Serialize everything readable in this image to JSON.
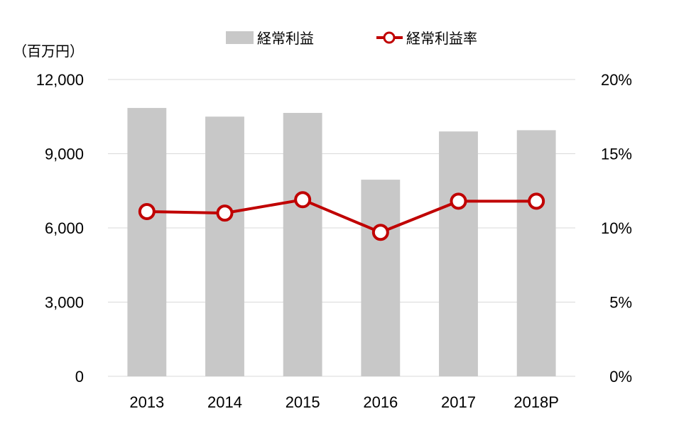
{
  "chart_data": {
    "type": "bar",
    "categories": [
      "2013",
      "2014",
      "2015",
      "2016",
      "2017",
      "2018P"
    ],
    "series": [
      {
        "name": "経常利益",
        "type": "bar",
        "axis": "left",
        "values": [
          10850,
          10500,
          10650,
          7950,
          9900,
          9950
        ],
        "color": "#c8c8c8"
      },
      {
        "name": "経常利益率",
        "type": "line",
        "axis": "right",
        "values": [
          11.1,
          11.0,
          11.9,
          9.7,
          11.8,
          11.8
        ],
        "color": "#c00000"
      }
    ],
    "y_left": {
      "label": "（百万円）",
      "lim": [
        0,
        12000
      ],
      "ticks": [
        0,
        3000,
        6000,
        9000,
        12000
      ],
      "tick_labels": [
        "0",
        "3,000",
        "6,000",
        "9,000",
        "12,000"
      ]
    },
    "y_right": {
      "lim": [
        0,
        20
      ],
      "ticks": [
        0,
        5,
        10,
        15,
        20
      ],
      "tick_labels": [
        "0%",
        "5%",
        "10%",
        "15%",
        "20%"
      ]
    },
    "grid": true,
    "legend": "top-center",
    "marker_fill": "#ffffff"
  }
}
